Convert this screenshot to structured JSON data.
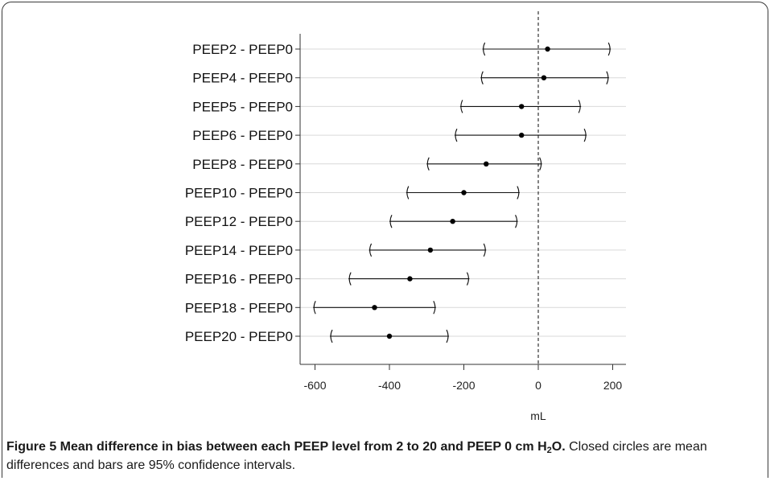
{
  "chart_data": {
    "type": "forest",
    "categories": [
      "PEEP2 - PEEP0",
      "PEEP4 - PEEP0",
      "PEEP5 - PEEP0",
      "PEEP6 - PEEP0",
      "PEEP8 - PEEP0",
      "PEEP10 - PEEP0",
      "PEEP12 - PEEP0",
      "PEEP14 - PEEP0",
      "PEEP16 - PEEP0",
      "PEEP18 - PEEP0",
      "PEEP20 - PEEP0"
    ],
    "mean": [
      25,
      15,
      -45,
      -45,
      -140,
      -200,
      -230,
      -290,
      -345,
      -440,
      -400
    ],
    "lower": [
      -150,
      -155,
      -210,
      -225,
      -300,
      -355,
      -400,
      -455,
      -510,
      -605,
      -560
    ],
    "upper": [
      195,
      190,
      115,
      130,
      10,
      -50,
      -55,
      -140,
      -185,
      -275,
      -240
    ],
    "xlabel": "mL",
    "xticks": [
      -600,
      -400,
      -200,
      0,
      200
    ],
    "xlim": [
      -640,
      215
    ],
    "reference_line": 0,
    "grid": true
  },
  "caption": {
    "figure_label": "Figure 5",
    "title_before_sub": " Mean difference in bias between each PEEP level from 2 to 20 and PEEP 0 cm H",
    "subscript": "2",
    "title_after_sub": "O.",
    "body": " Closed circles are mean differences and bars are 95% confidence intervals."
  }
}
